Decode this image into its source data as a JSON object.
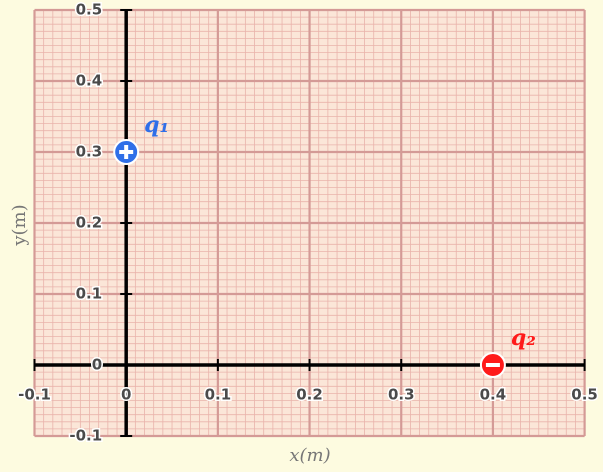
{
  "chart_data": {
    "type": "scatter",
    "xlabel": "x(m)",
    "ylabel": "y(m)",
    "xlim": [
      -0.1,
      0.5
    ],
    "ylim": [
      -0.1,
      0.5
    ],
    "xticks": [
      -0.1,
      0,
      0.1,
      0.2,
      0.3,
      0.4,
      0.5
    ],
    "yticks": [
      -0.1,
      0,
      0.1,
      0.2,
      0.3,
      0.4,
      0.5
    ],
    "grid": true,
    "series": [
      {
        "name": "q₁",
        "color": "#2f6fe8",
        "charge": "positive",
        "x": [
          0
        ],
        "values": [
          0.3
        ]
      },
      {
        "name": "q₂",
        "color": "#ff1a1a",
        "charge": "negative",
        "x": [
          0.4
        ],
        "values": [
          0
        ]
      }
    ]
  }
}
